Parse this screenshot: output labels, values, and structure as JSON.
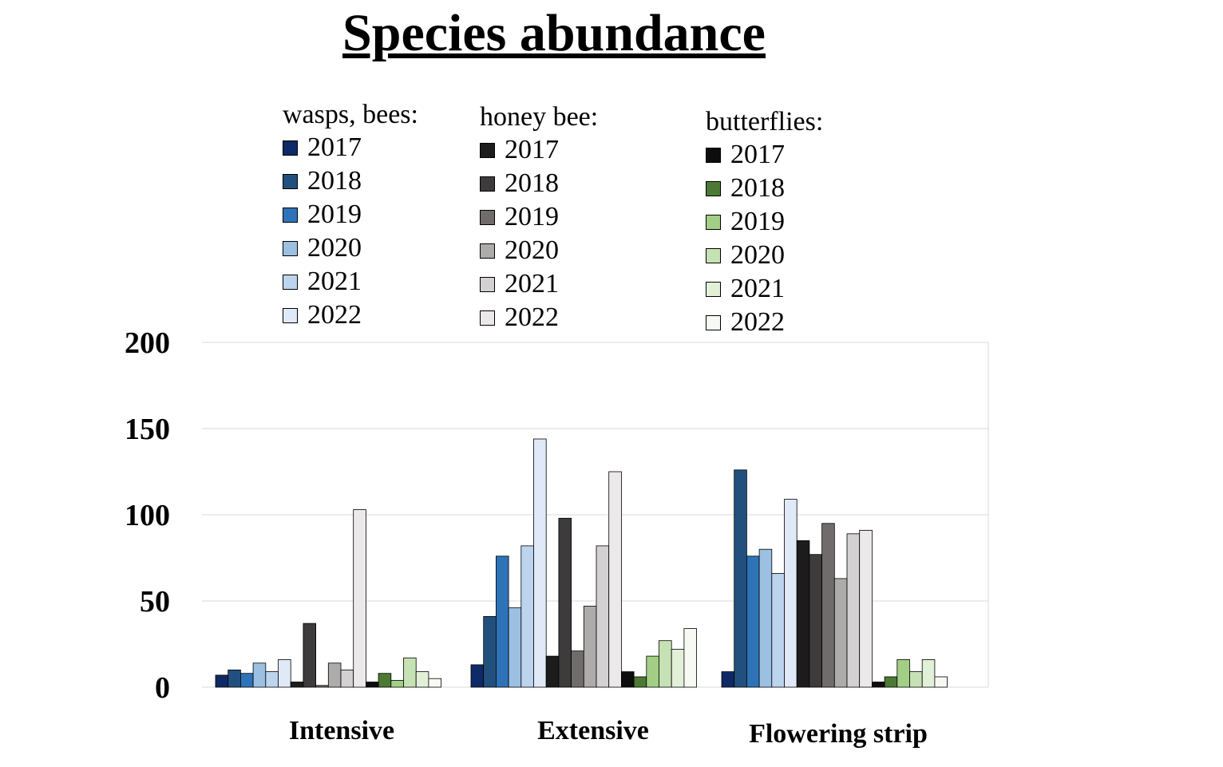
{
  "chart_data": {
    "type": "bar",
    "title": "Species abundance",
    "categories": [
      "Intensive",
      "Extensive",
      "Flowering strip"
    ],
    "ylim": [
      0,
      200
    ],
    "yticks": [
      0,
      50,
      100,
      150,
      200
    ],
    "grid": true,
    "groups": [
      {
        "legend_title": "wasps, bees:",
        "series": [
          {
            "name": "2017",
            "color": "#0e2a66",
            "values": [
              7,
              13,
              9
            ]
          },
          {
            "name": "2018",
            "color": "#22507e",
            "values": [
              10,
              41,
              126
            ]
          },
          {
            "name": "2019",
            "color": "#2e73b8",
            "values": [
              8,
              76,
              76
            ]
          },
          {
            "name": "2020",
            "color": "#9cc0e2",
            "values": [
              14,
              46,
              80
            ]
          },
          {
            "name": "2021",
            "color": "#bcd4ee",
            "values": [
              9,
              82,
              66
            ]
          },
          {
            "name": "2022",
            "color": "#dfe9f7",
            "values": [
              16,
              144,
              109
            ]
          }
        ]
      },
      {
        "legend_title": "honey bee:",
        "series": [
          {
            "name": "2017",
            "color": "#1c1c1c",
            "values": [
              3,
              18,
              85
            ]
          },
          {
            "name": "2018",
            "color": "#3d3b3c",
            "values": [
              37,
              98,
              77
            ]
          },
          {
            "name": "2019",
            "color": "#706c6b",
            "values": [
              1,
              21,
              95
            ]
          },
          {
            "name": "2020",
            "color": "#aeabab",
            "values": [
              14,
              47,
              63
            ]
          },
          {
            "name": "2021",
            "color": "#d3d1d2",
            "values": [
              10,
              82,
              89
            ]
          },
          {
            "name": "2022",
            "color": "#ebe9ea",
            "values": [
              103,
              125,
              91
            ]
          }
        ]
      },
      {
        "legend_title": "butterflies:",
        "series": [
          {
            "name": "2017",
            "color": "#0d0d0d",
            "values": [
              3,
              9,
              3
            ]
          },
          {
            "name": "2018",
            "color": "#4c7a34",
            "values": [
              8,
              6,
              6
            ]
          },
          {
            "name": "2019",
            "color": "#a2cf85",
            "values": [
              4,
              18,
              16
            ]
          },
          {
            "name": "2020",
            "color": "#c6e1b3",
            "values": [
              17,
              27,
              9
            ]
          },
          {
            "name": "2021",
            "color": "#e2f0d8",
            "values": [
              9,
              22,
              16
            ]
          },
          {
            "name": "2022",
            "color": "#f6faf3",
            "values": [
              5,
              34,
              6
            ]
          }
        ]
      }
    ]
  }
}
